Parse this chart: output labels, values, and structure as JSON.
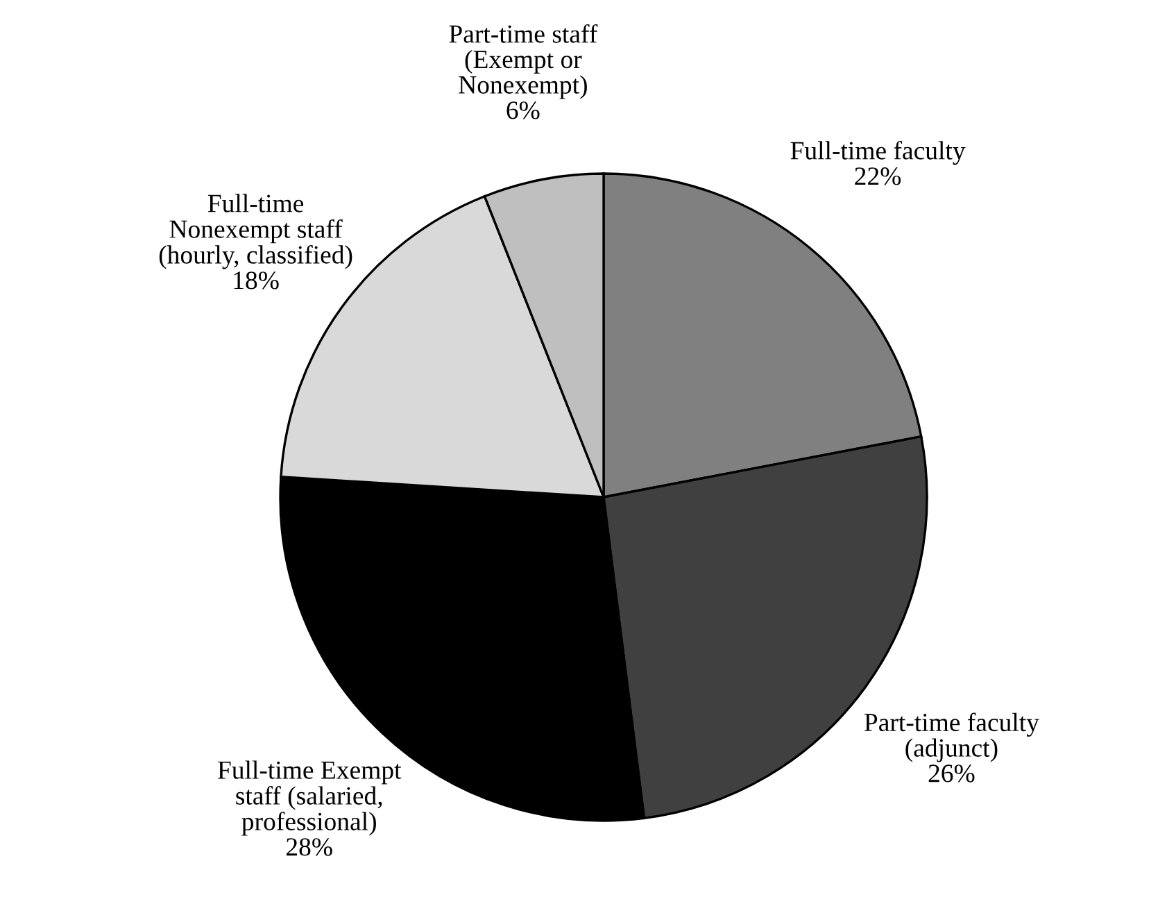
{
  "chart_data": {
    "type": "pie",
    "categories": [
      "Full-time faculty",
      "Part-time faculty\n(adjunct)",
      "Full-time Exempt\nstaff (salaried,\nprofessional)",
      "Full-time\nNonexempt staff\n(hourly, classified)",
      "Part-time staff\n(Exempt or\nNonexempt)"
    ],
    "values": [
      22,
      26,
      28,
      18,
      6
    ],
    "value_labels": [
      "22%",
      "26%",
      "28%",
      "18%",
      "6%"
    ],
    "colors": [
      "#808080",
      "#404040",
      "#000000",
      "#d9d9d9",
      "#bfbfbf"
    ],
    "legend": false
  }
}
